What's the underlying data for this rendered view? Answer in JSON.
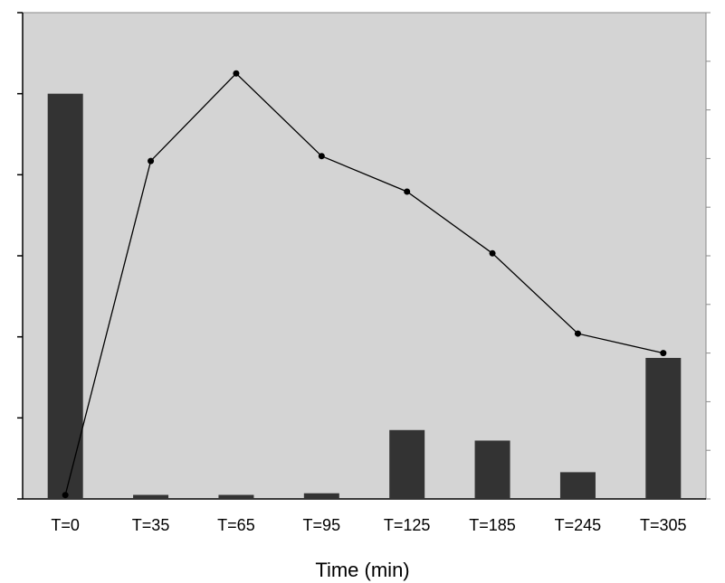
{
  "chart_data": {
    "type": "bar+line",
    "title": "",
    "xlabel": "Time (min)",
    "ylabel": "",
    "categories": [
      "T=0",
      "T=35",
      "T=65",
      "T=95",
      "T=125",
      "T=185",
      "T=245",
      "T=305"
    ],
    "ylim": [
      0,
      6
    ],
    "y2lim": [
      0,
      100
    ],
    "grid": false,
    "colors": {
      "plot_bg": "#d4d4d4",
      "bar": "#333333",
      "line": "#000000",
      "axis": "#000000"
    },
    "series": [
      {
        "type": "bar",
        "axis": "left",
        "values": [
          5.0,
          0.05,
          0.05,
          0.07,
          0.85,
          0.72,
          0.33,
          1.74
        ]
      },
      {
        "type": "line",
        "axis": "right",
        "values": [
          0.8,
          69.5,
          87.5,
          70.5,
          63.2,
          50.5,
          34.0,
          30.0
        ]
      }
    ]
  }
}
